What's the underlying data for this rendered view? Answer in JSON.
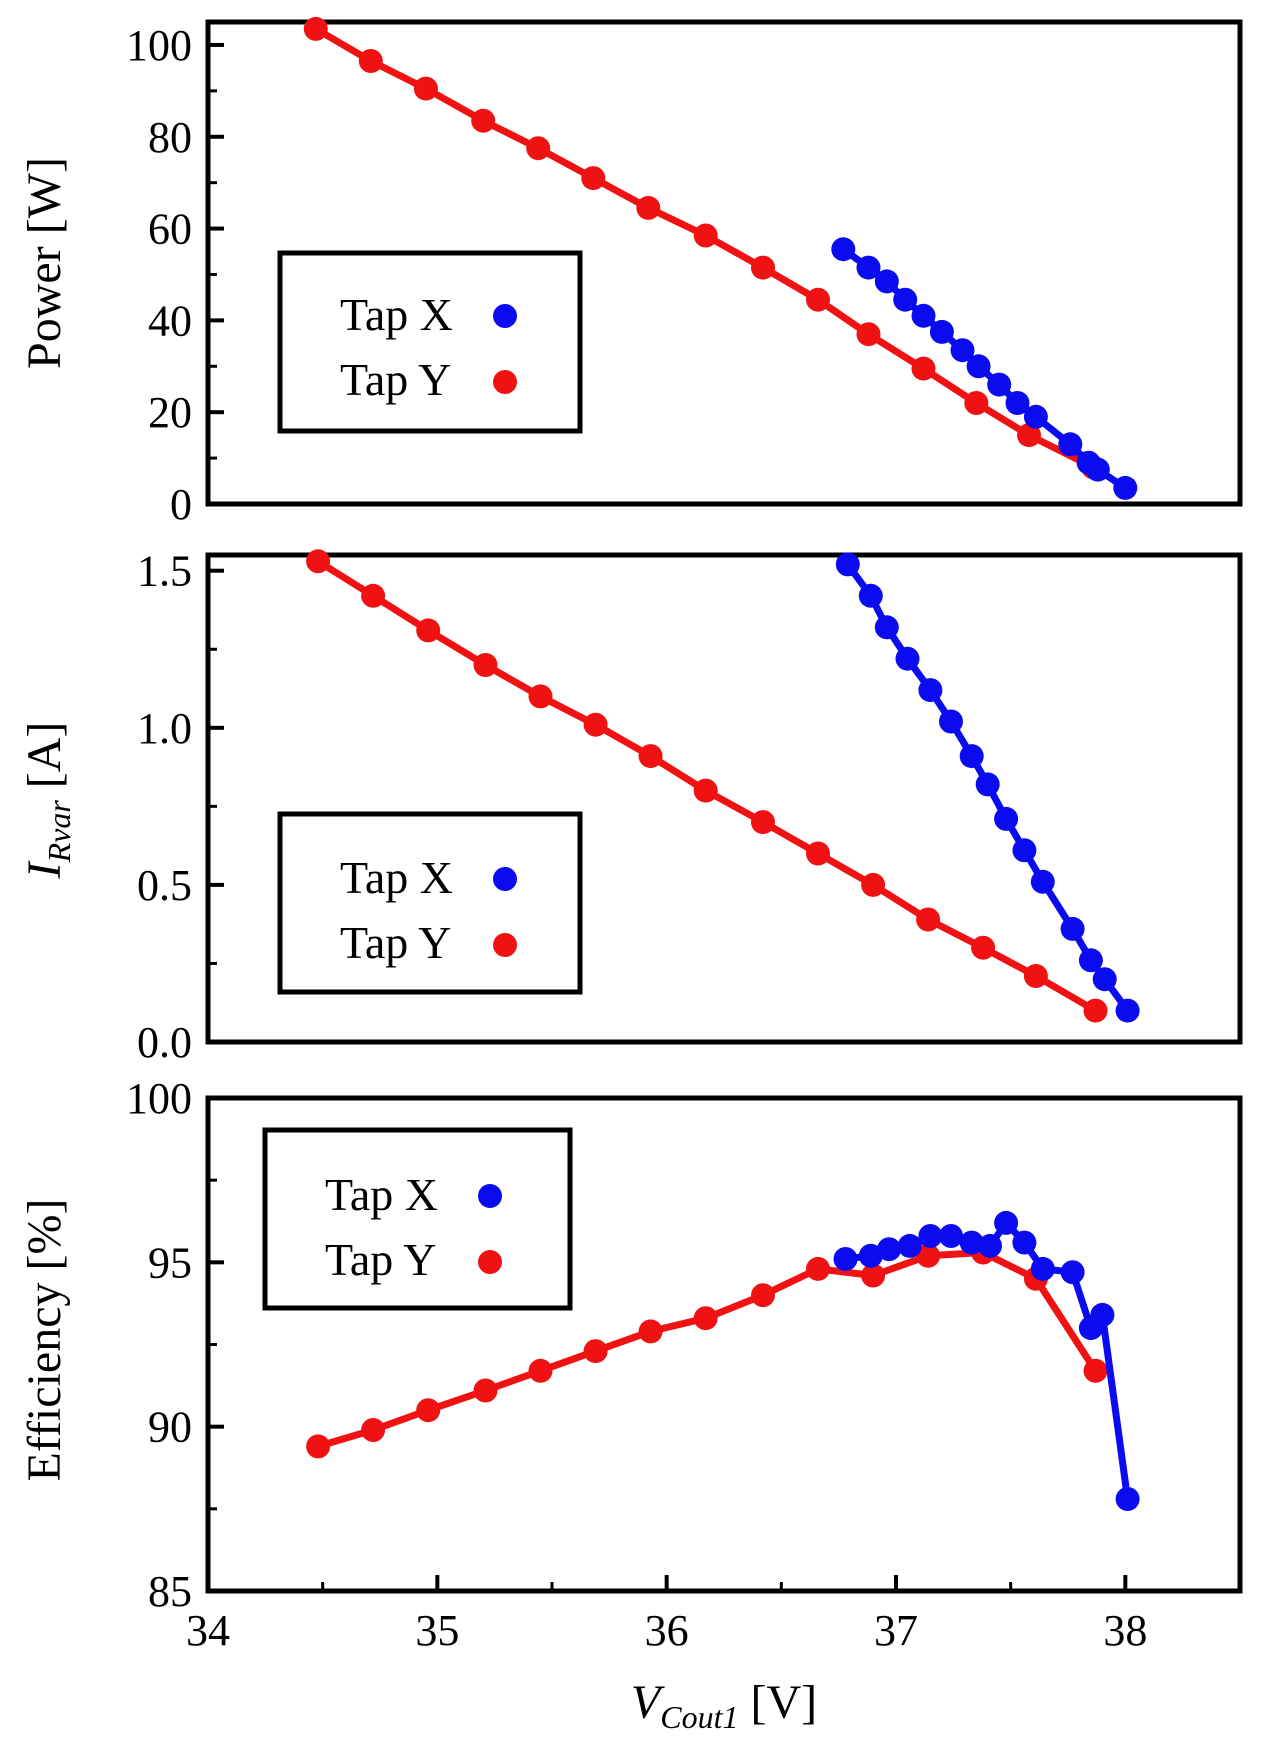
{
  "colors": {
    "tap_x": "#0b0bf0",
    "tap_y": "#f01212",
    "axis": "#000000",
    "background": "#ffffff"
  },
  "chart_data": [
    {
      "type": "line",
      "ylabel": "Power [W]",
      "ylim": [
        0,
        105
      ],
      "yticks": [
        "0",
        "20",
        "40",
        "60",
        "80",
        "100"
      ],
      "xlim": [
        34,
        38.5
      ],
      "legend": {
        "position": "center-left",
        "entries": [
          "Tap X",
          "Tap Y"
        ]
      },
      "series": [
        {
          "name": "Tap X",
          "color_key": "tap_x",
          "x": [
            36.77,
            36.88,
            36.96,
            37.04,
            37.12,
            37.2,
            37.29,
            37.36,
            37.45,
            37.53,
            37.61,
            37.76,
            37.84,
            37.88,
            38.0
          ],
          "y": [
            55.5,
            51.5,
            48.5,
            44.5,
            41,
            37.5,
            33.5,
            30,
            26,
            22,
            19,
            13,
            9,
            7.5,
            3.5
          ]
        },
        {
          "name": "Tap Y",
          "color_key": "tap_y",
          "x": [
            34.47,
            34.71,
            34.95,
            35.2,
            35.44,
            35.68,
            35.92,
            36.17,
            36.42,
            36.66,
            36.88,
            37.12,
            37.35,
            37.58,
            37.86
          ],
          "y": [
            103.5,
            96.5,
            90.5,
            83.5,
            77.5,
            71,
            64.5,
            58.5,
            51.5,
            44.5,
            37,
            29.5,
            22,
            15,
            8
          ]
        }
      ]
    },
    {
      "type": "line",
      "ylabel_main": "I",
      "ylabel_sub": "Rvar",
      "ylabel_unit": " [A]",
      "ylim": [
        0,
        1.55
      ],
      "yticks": [
        "0.0",
        "0.5",
        "1.0",
        "1.5"
      ],
      "xlim": [
        34,
        38.5
      ],
      "legend": {
        "position": "bottom-left",
        "entries": [
          "Tap X",
          "Tap Y"
        ]
      },
      "series": [
        {
          "name": "Tap X",
          "color_key": "tap_x",
          "x": [
            36.79,
            36.89,
            36.96,
            37.05,
            37.15,
            37.24,
            37.33,
            37.4,
            37.48,
            37.56,
            37.64,
            37.77,
            37.85,
            37.91,
            38.01
          ],
          "y": [
            1.52,
            1.42,
            1.32,
            1.22,
            1.12,
            1.02,
            0.91,
            0.82,
            0.71,
            0.61,
            0.51,
            0.36,
            0.26,
            0.2,
            0.1
          ]
        },
        {
          "name": "Tap Y",
          "color_key": "tap_y",
          "x": [
            34.48,
            34.72,
            34.96,
            35.21,
            35.45,
            35.69,
            35.93,
            36.17,
            36.42,
            36.66,
            36.9,
            37.14,
            37.38,
            37.61,
            37.87
          ],
          "y": [
            1.53,
            1.42,
            1.31,
            1.2,
            1.1,
            1.01,
            0.91,
            0.8,
            0.7,
            0.6,
            0.5,
            0.39,
            0.3,
            0.21,
            0.1
          ]
        }
      ]
    },
    {
      "type": "line",
      "ylabel": "Efficiency  [%]",
      "xlabel_main": "V",
      "xlabel_sub": "Cout1",
      "xlabel_unit": " [V]",
      "ylim": [
        85,
        100
      ],
      "yticks": [
        "85",
        "90",
        "95",
        "100"
      ],
      "xlim": [
        34,
        38.5
      ],
      "xticks": [
        "34",
        "35",
        "36",
        "37",
        "38"
      ],
      "legend": {
        "position": "top-left",
        "entries": [
          "Tap X",
          "Tap Y"
        ]
      },
      "series": [
        {
          "name": "Tap X",
          "color_key": "tap_x",
          "x": [
            36.78,
            36.89,
            36.97,
            37.06,
            37.15,
            37.24,
            37.33,
            37.41,
            37.48,
            37.56,
            37.64,
            37.77,
            37.85,
            37.9,
            38.01
          ],
          "y": [
            95.1,
            95.2,
            95.4,
            95.5,
            95.8,
            95.8,
            95.6,
            95.5,
            96.2,
            95.6,
            94.8,
            94.7,
            93.0,
            93.4,
            87.8
          ]
        },
        {
          "name": "Tap Y",
          "color_key": "tap_y",
          "x": [
            34.48,
            34.72,
            34.96,
            35.21,
            35.45,
            35.69,
            35.93,
            36.17,
            36.42,
            36.66,
            36.9,
            37.14,
            37.38,
            37.61,
            37.87
          ],
          "y": [
            89.4,
            89.9,
            90.5,
            91.1,
            91.7,
            92.3,
            92.9,
            93.3,
            94.0,
            94.8,
            94.6,
            95.2,
            95.3,
            94.5,
            91.7
          ]
        }
      ]
    }
  ]
}
